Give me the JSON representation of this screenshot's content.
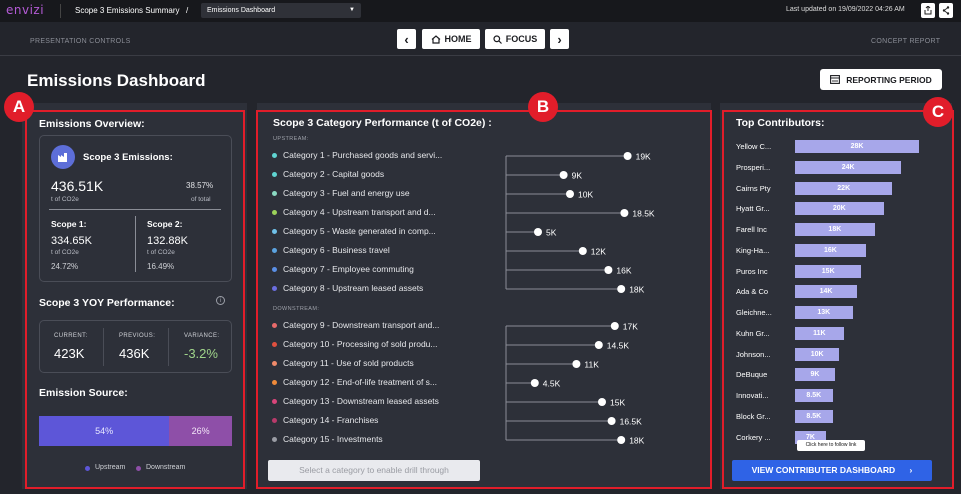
{
  "topbar": {
    "logo": "envizi",
    "breadcrumb": "Scope 3 Emissions Summary",
    "slash": "/",
    "dashboard_select": "Emissions Dashboard",
    "updated": "Last updated on 19/09/2022 04:26 AM"
  },
  "controls": {
    "presentation": "PRESENTATION CONTROLS",
    "home": "HOME",
    "focus": "FOCUS",
    "concept": "CONCEPT REPORT",
    "prev": "‹",
    "next": "›"
  },
  "header": {
    "title": "Emissions Dashboard",
    "reporting_period": "REPORTING PERIOD"
  },
  "badges": {
    "a": "A",
    "b": "B",
    "c": "C"
  },
  "overview": {
    "title": "Emissions Overview:",
    "scope3_label": "Scope 3 Emissions:",
    "scope3_value": "436.51K",
    "scope3_unit": "t of CO2e",
    "scope3_pct": "38.57%",
    "scope3_pct_label": "of total",
    "scope1_label": "Scope 1:",
    "scope1_value": "334.65K",
    "scope1_unit": "t of CO2e",
    "scope1_pct": "24.72%",
    "scope2_label": "Scope 2:",
    "scope2_value": "132.88K",
    "scope2_unit": "t of CO2e",
    "scope2_pct": "16.49%"
  },
  "yoy": {
    "title": "Scope 3 YOY Performance:",
    "current_label": "CURRENT:",
    "current_value": "423K",
    "previous_label": "PREVIOUS:",
    "previous_value": "436K",
    "variance_label": "VARIANCE:",
    "variance_value": "-3.2%"
  },
  "source": {
    "title": "Emission Source:",
    "upstream_pct": "54%",
    "downstream_pct": "26%",
    "upstream_share": 0.54,
    "downstream_share": 0.26,
    "legend_upstream": "Upstream",
    "legend_downstream": "Downstream",
    "colors": {
      "upstream": "#5d56d8",
      "downstream": "#8e4fa8"
    }
  },
  "categories": {
    "title": "Scope 3 Category Performance (t of CO2e) :",
    "upstream_label": "UPSTREAM:",
    "downstream_label": "DOWNSTREAM:",
    "upstream": [
      {
        "label": "Category 1 - Purchased goods and servi...",
        "value": 19,
        "display": "19K",
        "color": "#5fd4d1"
      },
      {
        "label": "Category 2 - Capital goods",
        "value": 9,
        "display": "9K",
        "color": "#5fd4d1"
      },
      {
        "label": "Category 3 - Fuel and energy use",
        "value": 10,
        "display": "10K",
        "color": "#8ad9c2"
      },
      {
        "label": "Category 4 - Upstream transport and d...",
        "value": 18.5,
        "display": "18.5K",
        "color": "#9bd25a"
      },
      {
        "label": "Category 5 - Waste generated in comp...",
        "value": 5,
        "display": "5K",
        "color": "#6fc0e8"
      },
      {
        "label": "Category 6 - Business travel",
        "value": 12,
        "display": "12K",
        "color": "#5ba3e0"
      },
      {
        "label": "Category 7 - Employee commuting",
        "value": 16,
        "display": "16K",
        "color": "#5a8fe6"
      },
      {
        "label": "Category 8 - Upstream leased assets",
        "value": 18,
        "display": "18K",
        "color": "#6b6ee0"
      }
    ],
    "downstream": [
      {
        "label": "Category 9 - Downstream transport and...",
        "value": 17,
        "display": "17K",
        "color": "#e86a6a"
      },
      {
        "label": "Category 10 - Processing of sold produ...",
        "value": 14.5,
        "display": "14.5K",
        "color": "#e0503f"
      },
      {
        "label": "Category 11 - Use of sold products",
        "value": 11,
        "display": "11K",
        "color": "#f08a6a"
      },
      {
        "label": "Category 12 - End-of-life treatment of s...",
        "value": 4.5,
        "display": "4.5K",
        "color": "#ef8a3a"
      },
      {
        "label": "Category 13 - Downstream leased assets",
        "value": 15,
        "display": "15K",
        "color": "#d9457a"
      },
      {
        "label": "Category 14 - Franchises",
        "value": 16.5,
        "display": "16.5K",
        "color": "#b83a6a"
      },
      {
        "label": "Category 15 - Investments",
        "value": 18,
        "display": "18K",
        "color": "#9a9ca4"
      }
    ],
    "drill": "Select a category to enable drill through"
  },
  "contributors": {
    "title": "Top Contributors:",
    "items": [
      {
        "name": "Yellow C...",
        "value": 28,
        "display": "28K"
      },
      {
        "name": "Prosperi...",
        "value": 24,
        "display": "24K"
      },
      {
        "name": "Cairns Pty",
        "value": 22,
        "display": "22K"
      },
      {
        "name": "Hyatt Gr...",
        "value": 20,
        "display": "20K"
      },
      {
        "name": "Farell Inc",
        "value": 18,
        "display": "18K"
      },
      {
        "name": "King-Ha...",
        "value": 16,
        "display": "16K"
      },
      {
        "name": "Puros Inc",
        "value": 15,
        "display": "15K"
      },
      {
        "name": "Ada & Co",
        "value": 14,
        "display": "14K"
      },
      {
        "name": "Gleichne...",
        "value": 13,
        "display": "13K"
      },
      {
        "name": "Kuhn Gr...",
        "value": 11,
        "display": "11K"
      },
      {
        "name": "Johnson...",
        "value": 10,
        "display": "10K"
      },
      {
        "name": "DeBuque",
        "value": 9,
        "display": "9K"
      },
      {
        "name": "Innovati...",
        "value": 8.5,
        "display": "8.5K"
      },
      {
        "name": "Block Gr...",
        "value": 8.5,
        "display": "8.5K"
      },
      {
        "name": "Corkery ...",
        "value": 7,
        "display": "7K"
      }
    ],
    "tooltip": "Click here to follow link",
    "button": "VIEW CONTRIBUTER DASHBOARD"
  }
}
